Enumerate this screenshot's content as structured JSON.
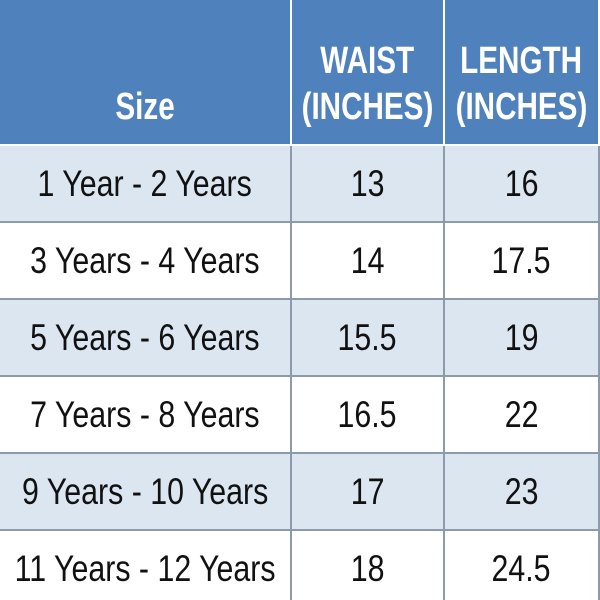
{
  "table": {
    "header": [
      [
        "Size"
      ],
      [
        "WAIST",
        "(INCHES)"
      ],
      [
        "LENGTH",
        "(INCHES)"
      ]
    ],
    "rows": [
      [
        "1 Year - 2 Years",
        13,
        16
      ],
      [
        "3 Years - 4 Years",
        14,
        17.5
      ],
      [
        "5 Years - 6 Years",
        15.5,
        19
      ],
      [
        "7 Years - 8 Years",
        16.5,
        22
      ],
      [
        "9 Years - 10 Years",
        17,
        23
      ],
      [
        "11 Years - 12 Years",
        18,
        24.5
      ]
    ]
  }
}
